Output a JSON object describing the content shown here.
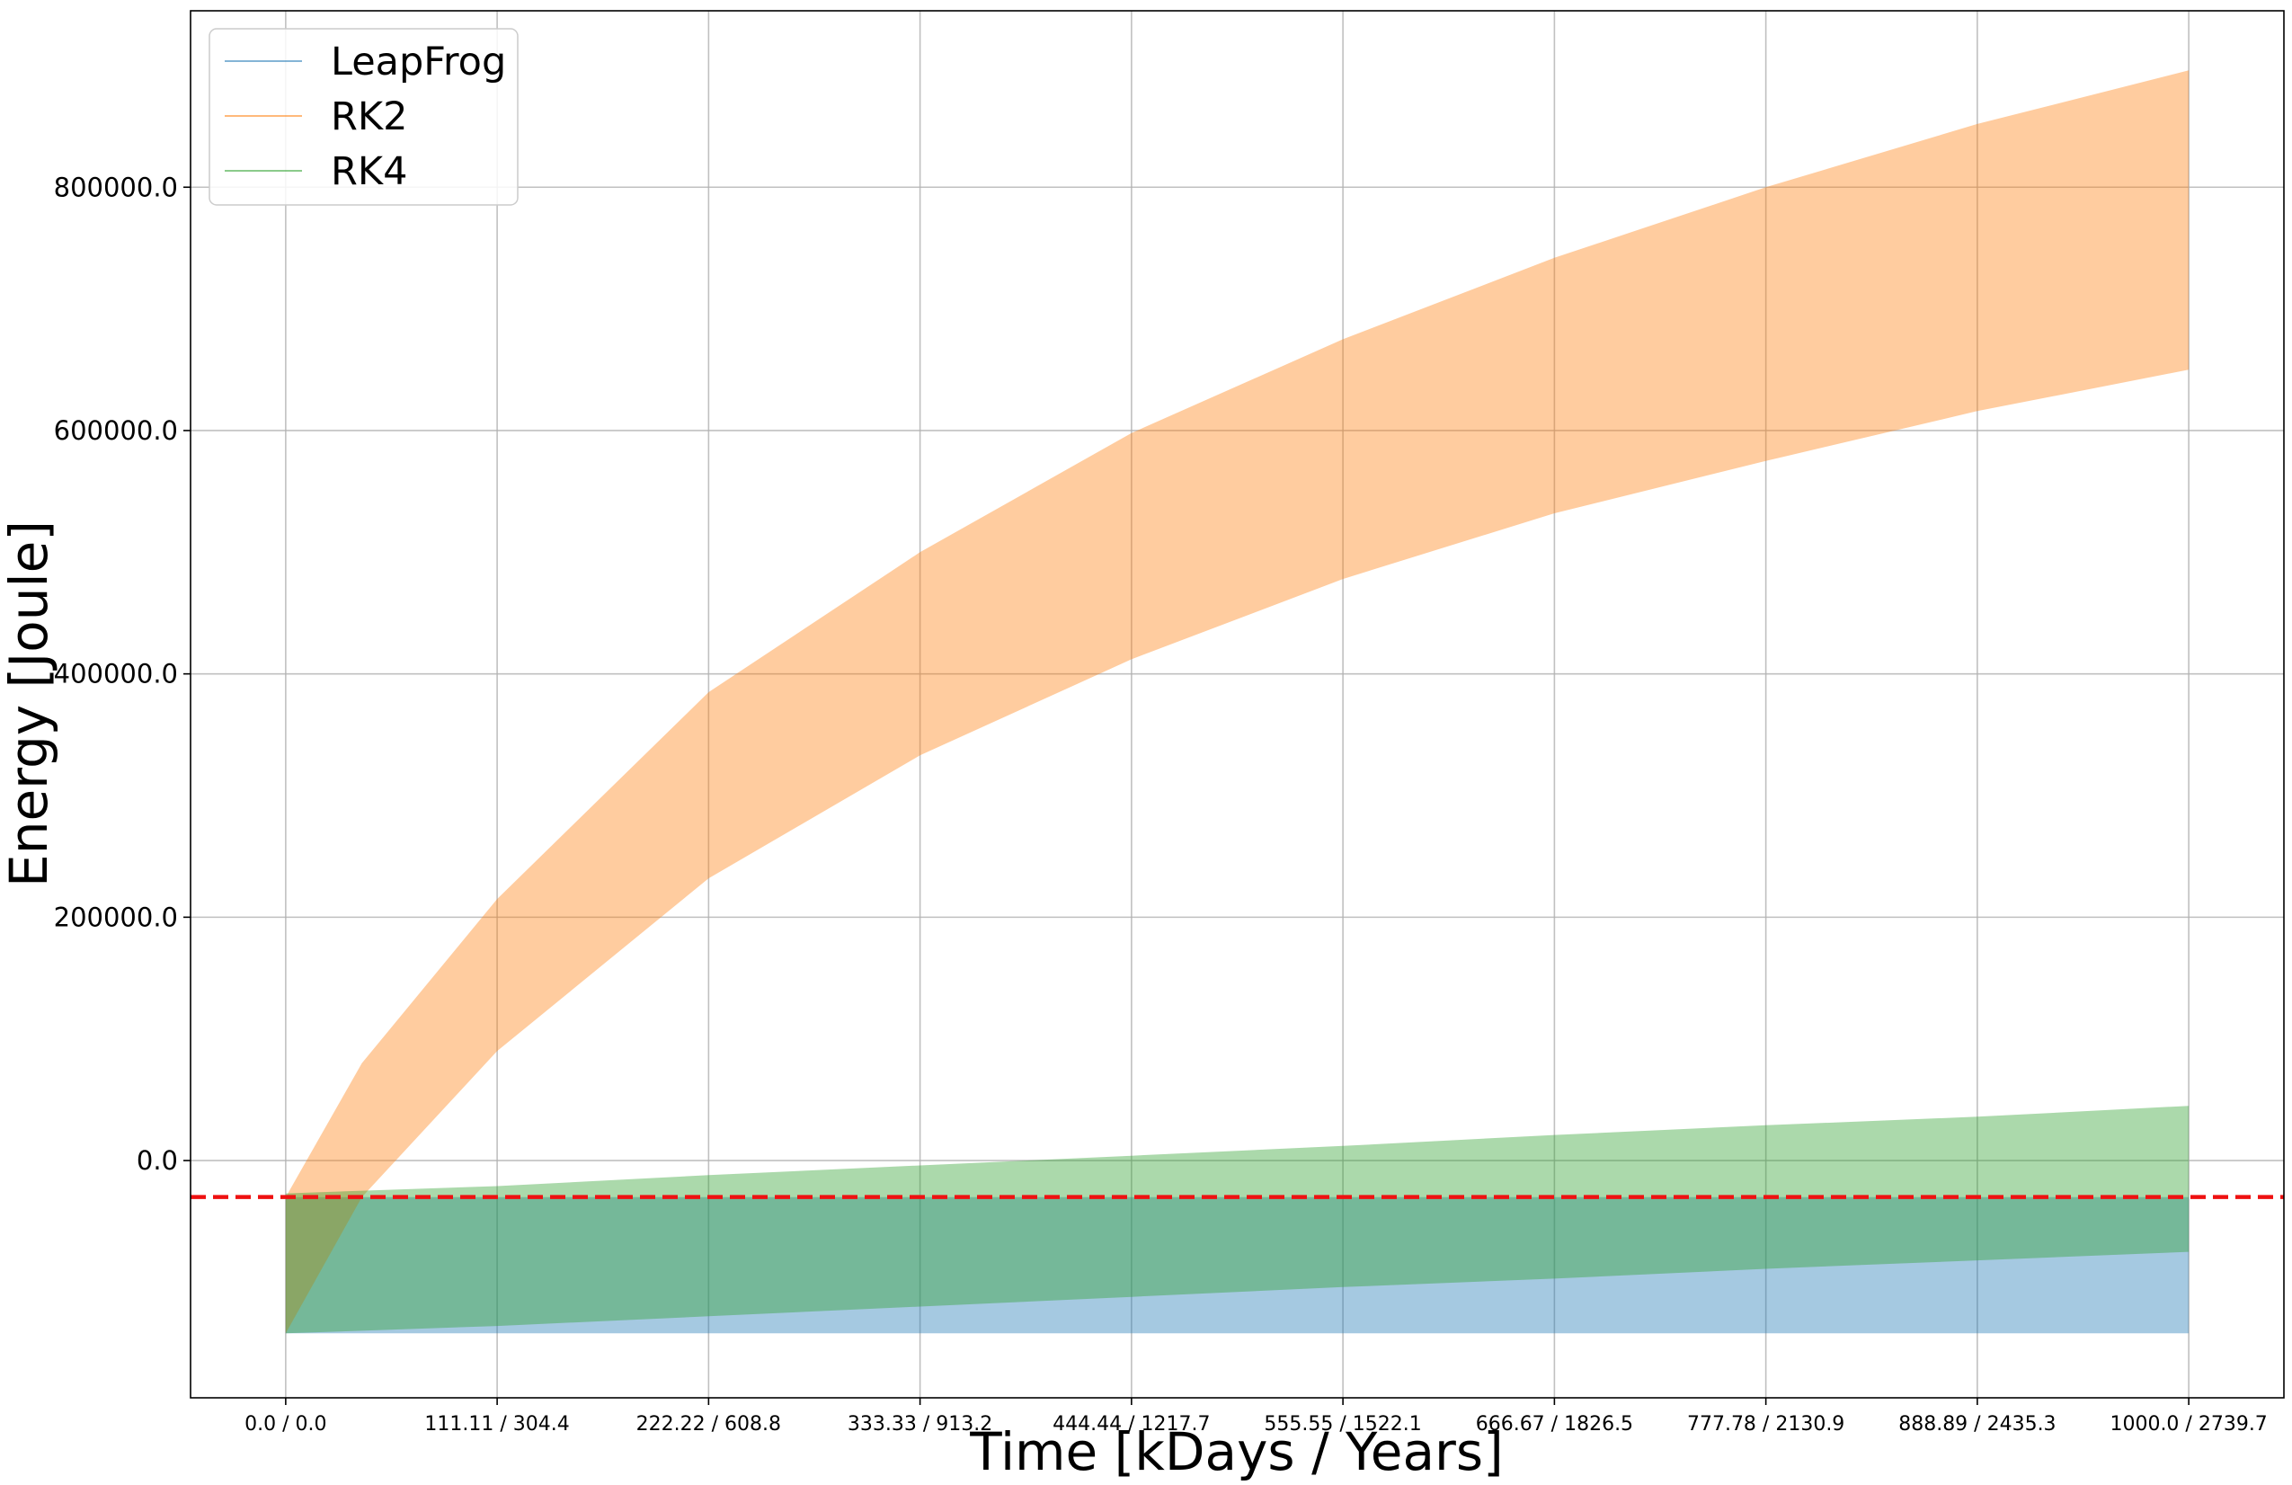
{
  "chart_data": {
    "type": "area",
    "title": "",
    "xlabel": "Time [kDays / Years]",
    "ylabel": "Energy [Joule]",
    "xlim": [
      -50,
      1050
    ],
    "ylim": [
      -195000,
      945000
    ],
    "grid": true,
    "legend_position": "top-left",
    "x_ticks": [
      0,
      111.11,
      222.22,
      333.33,
      444.44,
      555.55,
      666.67,
      777.78,
      888.89,
      1000.0
    ],
    "x_tick_labels": [
      "0.0 / 0.0",
      "111.11 / 304.4",
      "222.22 / 608.8",
      "333.33 / 913.2",
      "444.44 / 1217.7",
      "555.55 / 1522.1",
      "666.67 / 1826.5",
      "777.78 / 2130.9",
      "888.89 / 2435.3",
      "1000.0 / 2739.7"
    ],
    "y_ticks": [
      0,
      200000,
      400000,
      600000,
      800000
    ],
    "y_tick_labels": [
      "0.0",
      "200000.0",
      "400000.0",
      "600000.0",
      "800000.0"
    ],
    "reference_line": {
      "y": -30000,
      "color": "#ee1111",
      "style": "dashed"
    },
    "series": [
      {
        "name": "LeapFrog",
        "color": "#1f77b4",
        "fill_opacity": 0.4,
        "x": [
          0,
          111.11,
          222.22,
          333.33,
          444.44,
          555.55,
          666.67,
          777.78,
          888.89,
          1000.0
        ],
        "lower": [
          -142000,
          -142000,
          -142000,
          -142000,
          -142000,
          -142000,
          -142000,
          -142000,
          -142000,
          -142000
        ],
        "upper": [
          -30000,
          -30000,
          -30000,
          -30000,
          -30000,
          -30000,
          -30000,
          -30000,
          -30000,
          -30000
        ]
      },
      {
        "name": "RK2",
        "color": "#ff7f0e",
        "fill_opacity": 0.4,
        "x": [
          0,
          40,
          111.11,
          222.22,
          333.33,
          444.44,
          555.55,
          666.67,
          777.78,
          888.89,
          1000.0
        ],
        "lower": [
          -142000,
          -30000,
          90000,
          232000,
          333000,
          412000,
          478000,
          532000,
          575000,
          616000,
          650000
        ],
        "upper": [
          -30000,
          80000,
          215000,
          385000,
          500000,
          598000,
          675000,
          742000,
          800000,
          852000,
          896000
        ]
      },
      {
        "name": "RK4",
        "color": "#2ca02c",
        "fill_opacity": 0.4,
        "x": [
          0,
          111.11,
          222.22,
          333.33,
          444.44,
          555.55,
          666.67,
          777.78,
          888.89,
          1000.0
        ],
        "lower": [
          -142000,
          -136000,
          -128000,
          -120000,
          -112000,
          -104000,
          -97000,
          -89000,
          -82000,
          -75000
        ],
        "upper": [
          -27000,
          -21000,
          -12000,
          -4000,
          4000,
          12000,
          21000,
          29000,
          36000,
          45000
        ]
      }
    ]
  }
}
